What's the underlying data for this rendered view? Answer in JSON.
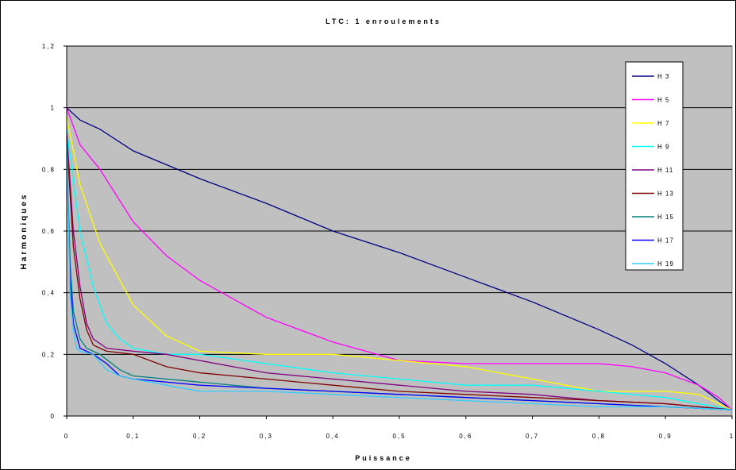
{
  "chart_data": {
    "type": "line",
    "title": "LTC:  1 enroulements",
    "xlabel": "Puissance",
    "ylabel": "Harmoniques",
    "xlim": [
      0,
      1
    ],
    "ylim": [
      0,
      1.2
    ],
    "x_ticks": [
      "0",
      "0,1",
      "0,2",
      "0,3",
      "0,4",
      "0,5",
      "0,6",
      "0,7",
      "0,8",
      "0,9",
      "1"
    ],
    "y_ticks": [
      "0",
      "0,2",
      "0,4",
      "0,6",
      "0,8",
      "1",
      "1,2"
    ],
    "grid": "horizontal",
    "plot_background": "#c0c0c0",
    "legend_position": "top-right",
    "series": [
      {
        "name": "H 3",
        "color": "#000080",
        "points": [
          [
            0,
            1.0
          ],
          [
            0.02,
            0.96
          ],
          [
            0.05,
            0.93
          ],
          [
            0.1,
            0.86
          ],
          [
            0.2,
            0.77
          ],
          [
            0.3,
            0.69
          ],
          [
            0.4,
            0.6
          ],
          [
            0.5,
            0.53
          ],
          [
            0.6,
            0.45
          ],
          [
            0.7,
            0.37
          ],
          [
            0.8,
            0.28
          ],
          [
            0.85,
            0.23
          ],
          [
            0.9,
            0.17
          ],
          [
            0.95,
            0.1
          ],
          [
            0.98,
            0.05
          ],
          [
            1.0,
            0.02
          ]
        ]
      },
      {
        "name": "H 5",
        "color": "#ff00ff",
        "points": [
          [
            0,
            1.0
          ],
          [
            0.02,
            0.88
          ],
          [
            0.05,
            0.8
          ],
          [
            0.1,
            0.63
          ],
          [
            0.15,
            0.52
          ],
          [
            0.2,
            0.44
          ],
          [
            0.3,
            0.32
          ],
          [
            0.4,
            0.24
          ],
          [
            0.5,
            0.18
          ],
          [
            0.6,
            0.17
          ],
          [
            0.7,
            0.17
          ],
          [
            0.8,
            0.17
          ],
          [
            0.85,
            0.16
          ],
          [
            0.9,
            0.14
          ],
          [
            0.95,
            0.1
          ],
          [
            0.98,
            0.06
          ],
          [
            1.0,
            0.02
          ]
        ]
      },
      {
        "name": "H 7",
        "color": "#ffff00",
        "points": [
          [
            0,
            0.97
          ],
          [
            0.02,
            0.75
          ],
          [
            0.05,
            0.56
          ],
          [
            0.1,
            0.36
          ],
          [
            0.15,
            0.26
          ],
          [
            0.2,
            0.21
          ],
          [
            0.3,
            0.2
          ],
          [
            0.4,
            0.2
          ],
          [
            0.5,
            0.18
          ],
          [
            0.6,
            0.16
          ],
          [
            0.7,
            0.12
          ],
          [
            0.8,
            0.08
          ],
          [
            0.9,
            0.08
          ],
          [
            0.95,
            0.07
          ],
          [
            1.0,
            0.02
          ]
        ]
      },
      {
        "name": "H 9",
        "color": "#00ffff",
        "points": [
          [
            0,
            0.93
          ],
          [
            0.02,
            0.6
          ],
          [
            0.04,
            0.42
          ],
          [
            0.06,
            0.3
          ],
          [
            0.08,
            0.25
          ],
          [
            0.1,
            0.22
          ],
          [
            0.15,
            0.2
          ],
          [
            0.2,
            0.2
          ],
          [
            0.3,
            0.17
          ],
          [
            0.4,
            0.14
          ],
          [
            0.5,
            0.12
          ],
          [
            0.6,
            0.1
          ],
          [
            0.7,
            0.1
          ],
          [
            0.8,
            0.08
          ],
          [
            0.9,
            0.06
          ],
          [
            0.95,
            0.04
          ],
          [
            1.0,
            0.02
          ]
        ]
      },
      {
        "name": "H 11",
        "color": "#800080",
        "points": [
          [
            0,
            0.92
          ],
          [
            0.01,
            0.6
          ],
          [
            0.02,
            0.42
          ],
          [
            0.03,
            0.3
          ],
          [
            0.04,
            0.25
          ],
          [
            0.06,
            0.22
          ],
          [
            0.1,
            0.21
          ],
          [
            0.15,
            0.2
          ],
          [
            0.2,
            0.18
          ],
          [
            0.3,
            0.14
          ],
          [
            0.4,
            0.12
          ],
          [
            0.5,
            0.1
          ],
          [
            0.6,
            0.08
          ],
          [
            0.7,
            0.07
          ],
          [
            0.8,
            0.05
          ],
          [
            0.9,
            0.04
          ],
          [
            1.0,
            0.02
          ]
        ]
      },
      {
        "name": "H 13",
        "color": "#800000",
        "points": [
          [
            0,
            0.9
          ],
          [
            0.01,
            0.55
          ],
          [
            0.02,
            0.38
          ],
          [
            0.03,
            0.28
          ],
          [
            0.04,
            0.23
          ],
          [
            0.06,
            0.21
          ],
          [
            0.1,
            0.2
          ],
          [
            0.15,
            0.16
          ],
          [
            0.2,
            0.14
          ],
          [
            0.3,
            0.12
          ],
          [
            0.4,
            0.1
          ],
          [
            0.5,
            0.08
          ],
          [
            0.6,
            0.07
          ],
          [
            0.7,
            0.06
          ],
          [
            0.8,
            0.05
          ],
          [
            0.9,
            0.04
          ],
          [
            1.0,
            0.02
          ]
        ]
      },
      {
        "name": "H 15",
        "color": "#008080",
        "points": [
          [
            0,
            0.88
          ],
          [
            0.005,
            0.5
          ],
          [
            0.01,
            0.34
          ],
          [
            0.02,
            0.25
          ],
          [
            0.03,
            0.22
          ],
          [
            0.05,
            0.2
          ],
          [
            0.08,
            0.15
          ],
          [
            0.1,
            0.13
          ],
          [
            0.15,
            0.12
          ],
          [
            0.2,
            0.11
          ],
          [
            0.3,
            0.09
          ],
          [
            0.4,
            0.08
          ],
          [
            0.5,
            0.07
          ],
          [
            0.6,
            0.06
          ],
          [
            0.7,
            0.05
          ],
          [
            0.8,
            0.04
          ],
          [
            0.9,
            0.03
          ],
          [
            1.0,
            0.02
          ]
        ]
      },
      {
        "name": "H 17",
        "color": "#0000ff",
        "points": [
          [
            0,
            0.85
          ],
          [
            0.005,
            0.45
          ],
          [
            0.01,
            0.3
          ],
          [
            0.02,
            0.22
          ],
          [
            0.04,
            0.2
          ],
          [
            0.06,
            0.17
          ],
          [
            0.08,
            0.13
          ],
          [
            0.1,
            0.12
          ],
          [
            0.2,
            0.1
          ],
          [
            0.3,
            0.09
          ],
          [
            0.4,
            0.08
          ],
          [
            0.5,
            0.07
          ],
          [
            0.6,
            0.06
          ],
          [
            0.7,
            0.05
          ],
          [
            0.8,
            0.04
          ],
          [
            0.9,
            0.03
          ],
          [
            1.0,
            0.02
          ]
        ]
      },
      {
        "name": "H 19",
        "color": "#33ccff",
        "points": [
          [
            0,
            0.9
          ],
          [
            0.005,
            0.4
          ],
          [
            0.01,
            0.28
          ],
          [
            0.015,
            0.22
          ],
          [
            0.02,
            0.21
          ],
          [
            0.04,
            0.2
          ],
          [
            0.06,
            0.15
          ],
          [
            0.08,
            0.13
          ],
          [
            0.1,
            0.12
          ],
          [
            0.15,
            0.1
          ],
          [
            0.2,
            0.08
          ],
          [
            0.3,
            0.08
          ],
          [
            0.4,
            0.07
          ],
          [
            0.5,
            0.06
          ],
          [
            0.6,
            0.05
          ],
          [
            0.7,
            0.04
          ],
          [
            0.8,
            0.03
          ],
          [
            0.9,
            0.03
          ],
          [
            1.0,
            0.02
          ]
        ]
      }
    ]
  }
}
